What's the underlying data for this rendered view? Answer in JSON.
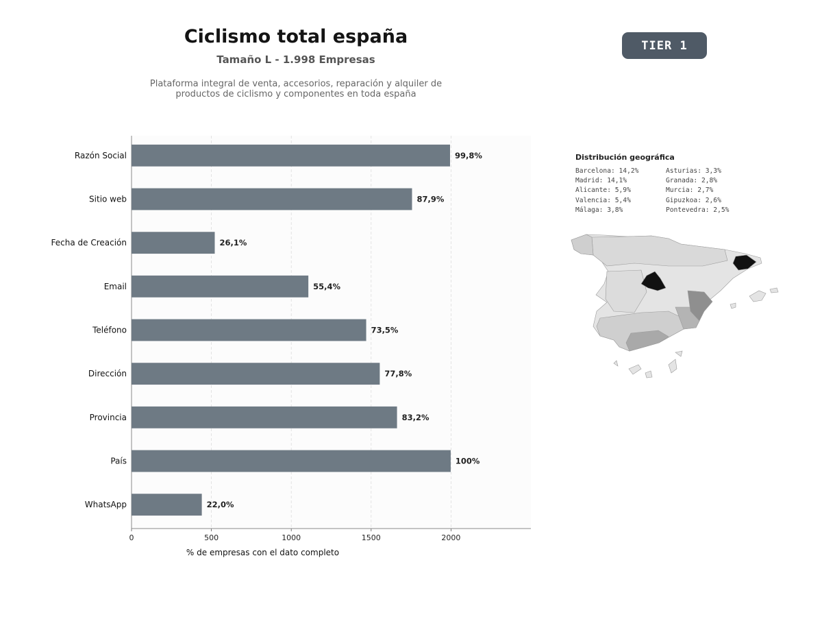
{
  "header": {
    "title": "Ciclismo total españa",
    "subtitle": "Tamaño L - 1.998 Empresas",
    "description": "Plataforma integral de venta, accesorios, reparación y alquiler de\nproductos de ciclismo y componentes en toda españa",
    "tier_label": "TIER 1"
  },
  "chart_data": {
    "type": "bar",
    "orientation": "horizontal",
    "categories": [
      "Razón Social",
      "Sitio web",
      "Fecha de Creación",
      "Email",
      "Teléfono",
      "Dirección",
      "Provincia",
      "País",
      "WhatsApp"
    ],
    "values": [
      1994,
      1756,
      521,
      1107,
      1469,
      1554,
      1662,
      1998,
      440
    ],
    "value_labels": [
      "99,8%",
      "87,9%",
      "26,1%",
      "55,4%",
      "73,5%",
      "77,8%",
      "83,2%",
      "100%",
      "22,0%"
    ],
    "xlabel": "% de empresas con el dato completo",
    "xticks": [
      "0",
      "500",
      "1000",
      "1500",
      "2000"
    ],
    "xlim": [
      0,
      2500
    ],
    "bar_color": "#6e7a84",
    "grid": "x, dashed"
  },
  "geo": {
    "title": "Distribución geográfica",
    "items": [
      "Barcelona: 14,2%",
      "Asturias: 3,3%",
      "Madrid: 14,1%",
      "Granada: 2,8%",
      "Alicante: 5,9%",
      "Murcia: 2,7%",
      "Valencia: 5,4%",
      "Gipuzkoa: 2,6%",
      "Málaga: 3,8%",
      "Pontevedra: 2,5%"
    ],
    "highlight_colors": {
      "top": "#111111",
      "mid": "#8f8f8f",
      "low": "#cfcfcf",
      "base": "#e4e4e4"
    }
  }
}
